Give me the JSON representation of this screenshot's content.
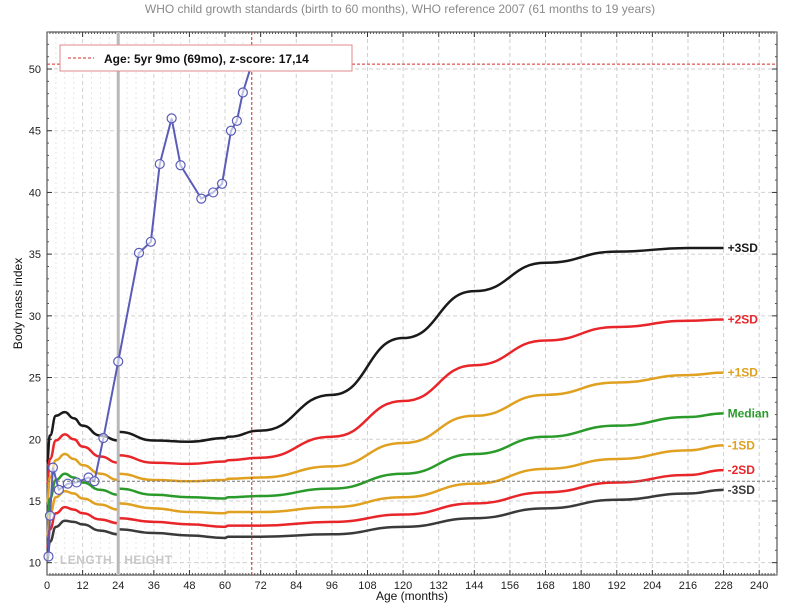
{
  "chart_data": {
    "type": "line",
    "title": "WHO child growth standards (birth to 60 months), WHO reference 2007 (61 months to 19 years)",
    "xlabel": "Age (months)",
    "ylabel": "Body mass index",
    "xlim": [
      0,
      246
    ],
    "ylim": [
      9,
      53
    ],
    "x_ticks": [
      0,
      12,
      24,
      36,
      48,
      60,
      72,
      84,
      96,
      108,
      120,
      132,
      144,
      156,
      168,
      180,
      192,
      204,
      216,
      228,
      240
    ],
    "y_ticks": [
      10,
      15,
      20,
      25,
      30,
      35,
      40,
      45,
      50
    ],
    "phase_labels": [
      "LENGTH",
      "HEIGHT"
    ],
    "phase_divider_x": 24,
    "cursor": {
      "x": 69,
      "y": 50.4,
      "text": "Age: 5yr 9mo (69mo), z-score: 17,14"
    },
    "curves": [
      {
        "name": "+3SD",
        "color": "#1a1a1a",
        "x": [
          0,
          1,
          3,
          6,
          9,
          12,
          18,
          24,
          24,
          36,
          48,
          60,
          61,
          72,
          96,
          120,
          144,
          168,
          192,
          216,
          228
        ],
        "y": [
          18.1,
          20.3,
          21.9,
          22.2,
          21.7,
          21.1,
          20.3,
          19.9,
          20.6,
          19.9,
          19.8,
          20.1,
          20.2,
          20.7,
          23.6,
          28.2,
          32.0,
          34.3,
          35.2,
          35.5,
          35.5
        ]
      },
      {
        "name": "+2SD",
        "color": "#e8262a",
        "x": [
          0,
          1,
          3,
          6,
          9,
          12,
          18,
          24,
          24,
          36,
          48,
          60,
          61,
          72,
          96,
          120,
          144,
          168,
          192,
          216,
          228
        ],
        "y": [
          16.3,
          18.4,
          19.9,
          20.4,
          20.0,
          19.4,
          18.6,
          18.1,
          18.7,
          18.1,
          18.0,
          18.2,
          18.3,
          18.5,
          20.2,
          23.1,
          26.0,
          28.0,
          29.1,
          29.6,
          29.7
        ]
      },
      {
        "name": "+1SD",
        "color": "#e0a020",
        "x": [
          0,
          1,
          3,
          6,
          9,
          12,
          18,
          24,
          24,
          36,
          48,
          60,
          61,
          72,
          96,
          120,
          144,
          168,
          192,
          216,
          228
        ],
        "y": [
          14.8,
          16.9,
          18.3,
          18.8,
          18.4,
          17.9,
          17.2,
          16.7,
          17.2,
          16.7,
          16.6,
          16.7,
          16.8,
          16.9,
          17.8,
          19.7,
          21.9,
          23.6,
          24.6,
          25.2,
          25.4
        ]
      },
      {
        "name": "Median",
        "color": "#2a9a2a",
        "x": [
          0,
          1,
          3,
          6,
          9,
          12,
          18,
          24,
          24,
          36,
          48,
          60,
          61,
          72,
          96,
          120,
          144,
          168,
          192,
          216,
          228
        ],
        "y": [
          13.4,
          15.2,
          16.7,
          17.2,
          16.9,
          16.5,
          15.9,
          15.5,
          16.0,
          15.5,
          15.3,
          15.2,
          15.3,
          15.4,
          16.0,
          17.2,
          18.8,
          20.2,
          21.1,
          21.8,
          22.1
        ]
      },
      {
        "name": "-1SD",
        "color": "#e0a020",
        "x": [
          0,
          1,
          3,
          6,
          9,
          12,
          18,
          24,
          24,
          36,
          48,
          60,
          61,
          72,
          96,
          120,
          144,
          168,
          192,
          216,
          228
        ],
        "y": [
          12.1,
          13.9,
          15.3,
          15.8,
          15.6,
          15.2,
          14.7,
          14.3,
          14.8,
          14.4,
          14.1,
          14.0,
          14.1,
          14.1,
          14.5,
          15.3,
          16.4,
          17.6,
          18.4,
          19.1,
          19.5
        ]
      },
      {
        "name": "-2SD",
        "color": "#e8262a",
        "x": [
          0,
          1,
          3,
          6,
          9,
          12,
          18,
          24,
          24,
          36,
          48,
          60,
          61,
          72,
          96,
          120,
          144,
          168,
          192,
          216,
          228
        ],
        "y": [
          11.1,
          12.7,
          14.0,
          14.5,
          14.3,
          14.0,
          13.5,
          13.2,
          13.6,
          13.3,
          13.1,
          12.9,
          13.0,
          13.0,
          13.3,
          13.9,
          14.8,
          15.7,
          16.5,
          17.1,
          17.5
        ]
      },
      {
        "name": "-3SD",
        "color": "#3a3a3a",
        "x": [
          0,
          1,
          3,
          6,
          9,
          12,
          18,
          24,
          24,
          36,
          48,
          60,
          61,
          72,
          96,
          120,
          144,
          168,
          192,
          216,
          228
        ],
        "y": [
          10.2,
          11.7,
          12.9,
          13.4,
          13.3,
          13.1,
          12.6,
          12.3,
          12.7,
          12.4,
          12.2,
          12.0,
          12.1,
          12.1,
          12.3,
          12.9,
          13.6,
          14.4,
          15.1,
          15.6,
          15.9
        ]
      }
    ],
    "patient": {
      "name": "",
      "color": "#5a5cb8",
      "x": [
        0.5,
        1,
        2,
        4,
        7,
        10,
        14,
        16,
        19,
        24,
        31,
        35,
        38,
        42,
        45,
        52,
        56,
        59,
        62,
        64,
        66,
        69
      ],
      "y": [
        10.5,
        13.8,
        17.7,
        15.9,
        16.4,
        16.5,
        16.9,
        16.6,
        20.1,
        26.3,
        35.1,
        36.0,
        42.3,
        46.0,
        42.2,
        39.5,
        40.0,
        40.7,
        45.0,
        45.8,
        48.1,
        50.4
      ]
    }
  }
}
